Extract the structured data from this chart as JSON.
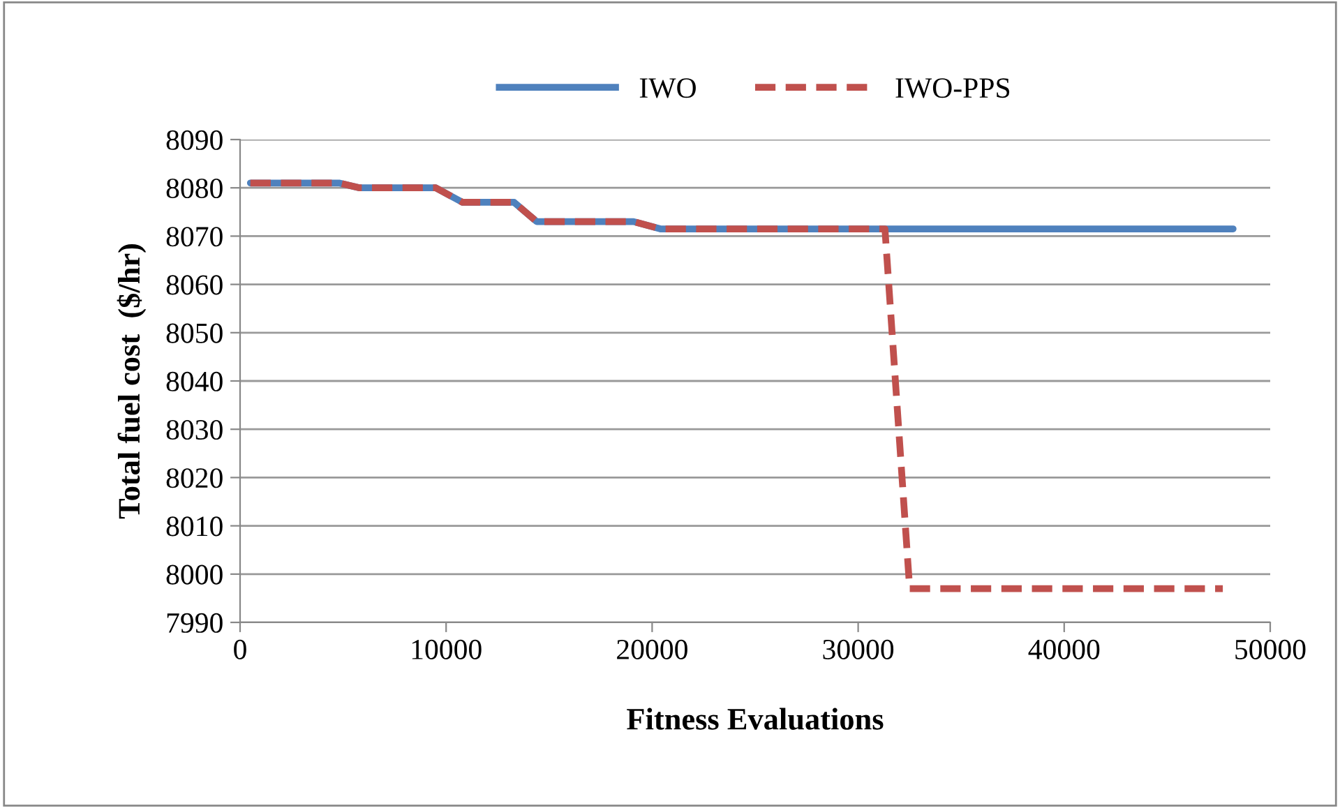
{
  "chart_data": {
    "type": "line",
    "xlabel": "Fitness Evaluations",
    "ylabel": "Total fuel cost  ($/hr)",
    "xlim": [
      0,
      50000
    ],
    "xticks": [
      0,
      10000,
      20000,
      30000,
      40000,
      50000
    ],
    "ylim": [
      7990,
      8090
    ],
    "yticks": [
      7990,
      8000,
      8010,
      8020,
      8030,
      8040,
      8050,
      8060,
      8070,
      8080,
      8090
    ],
    "grid": "y",
    "legend": "top",
    "marker": "none",
    "series": [
      {
        "name": "IWO",
        "color": "#4f81bd",
        "line_style": "solid",
        "x": [
          500,
          4800,
          5800,
          9500,
          10800,
          13300,
          14400,
          19100,
          20400,
          48200
        ],
        "values": [
          8081,
          8081,
          8080,
          8080,
          8077,
          8077,
          8073,
          8073,
          8071.5,
          8071.5
        ]
      },
      {
        "name": "IWO-PPS",
        "color": "#c0504d",
        "line_style": "dashed",
        "x": [
          500,
          4800,
          5800,
          9500,
          10800,
          13300,
          14400,
          19100,
          20400,
          31300,
          32500,
          47700
        ],
        "values": [
          8081,
          8081,
          8080,
          8080,
          8077,
          8077,
          8073,
          8073,
          8071.5,
          8071.5,
          7997,
          7997
        ]
      }
    ]
  }
}
